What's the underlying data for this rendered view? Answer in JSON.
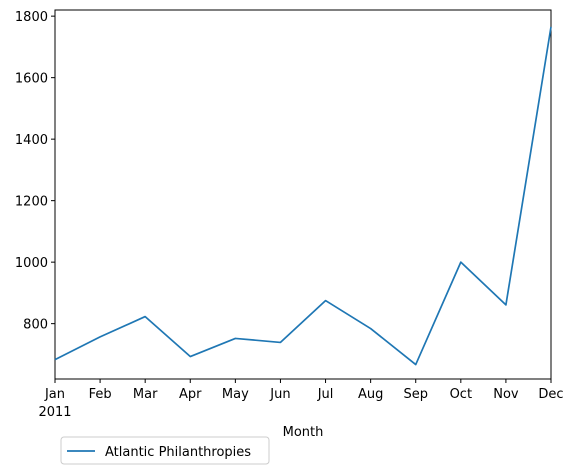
{
  "chart_data": {
    "type": "line",
    "x": [
      "Jan",
      "Feb",
      "Mar",
      "Apr",
      "May",
      "Jun",
      "Jul",
      "Aug",
      "Sep",
      "Oct",
      "Nov",
      "Dec"
    ],
    "x_tick_labels": [
      "Jan",
      "Feb",
      "Mar",
      "Apr",
      "May",
      "Jun",
      "Jul",
      "Aug",
      "Sep",
      "Oct",
      "Nov",
      "Dec"
    ],
    "x_year_label": "2011",
    "series": [
      {
        "name": "Atlantic Philanthropies",
        "color": "#1f77b4",
        "values": [
          683,
          757,
          823,
          693,
          752,
          739,
          875,
          784,
          667,
          1000,
          861,
          1765
        ]
      }
    ],
    "title": "",
    "xlabel": "Month",
    "ylabel": "",
    "ylim": [
      620,
      1820
    ],
    "yticks": [
      800,
      1000,
      1200,
      1400,
      1600,
      1800
    ],
    "grid": false,
    "legend_position": "below-left"
  }
}
